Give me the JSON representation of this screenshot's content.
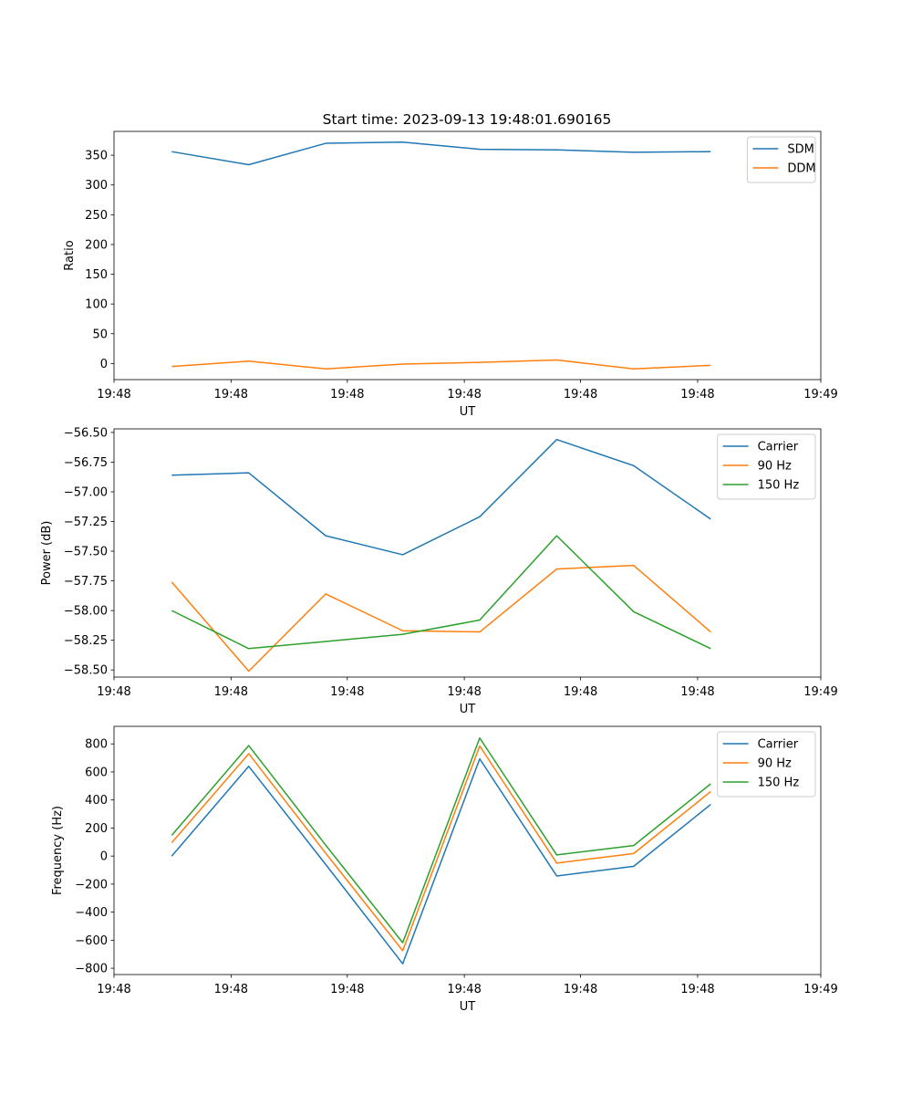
{
  "figure_title": "Start time: 2023-09-13 19:48:01.690165",
  "chart_data": [
    {
      "type": "line",
      "title": "Start time: 2023-09-13 19:48:01.690165",
      "xlabel": "UT",
      "ylabel": "Ratio",
      "x": [
        0,
        1,
        2,
        3,
        4,
        5,
        6,
        7
      ],
      "xlim": [
        -0.75,
        8.43
      ],
      "x_ticks": [
        -0.75,
        0.77,
        2.28,
        3.8,
        5.31,
        6.83,
        8.43
      ],
      "x_tick_labels": [
        "19:48",
        "19:48",
        "19:48",
        "19:48",
        "19:48",
        "19:48",
        "19:49"
      ],
      "ylim": [
        -27,
        390
      ],
      "y_ticks": [
        0,
        50,
        100,
        150,
        200,
        250,
        300,
        350
      ],
      "y_tick_labels": [
        "0",
        "50",
        "100",
        "150",
        "200",
        "250",
        "300",
        "350"
      ],
      "legend_position": "top-right",
      "series": [
        {
          "name": "SDM",
          "color": "#1f77b4",
          "values": [
            356,
            334,
            370,
            372,
            360,
            359,
            355,
            356
          ]
        },
        {
          "name": "DDM",
          "color": "#ff7f0e",
          "values": [
            -5,
            4,
            -9,
            -1,
            2,
            6,
            -9,
            -3
          ]
        }
      ]
    },
    {
      "type": "line",
      "title": "",
      "xlabel": "UT",
      "ylabel": "Power (dB)",
      "x": [
        0,
        1,
        2,
        3,
        4,
        5,
        6,
        7
      ],
      "xlim": [
        -0.75,
        8.43
      ],
      "x_ticks": [
        -0.75,
        0.77,
        2.28,
        3.8,
        5.31,
        6.83,
        8.43
      ],
      "x_tick_labels": [
        "19:48",
        "19:48",
        "19:48",
        "19:48",
        "19:48",
        "19:48",
        "19:49"
      ],
      "ylim": [
        -58.56,
        -56.47
      ],
      "y_ticks": [
        -58.5,
        -58.25,
        -58.0,
        -57.75,
        -57.5,
        -57.25,
        -57.0,
        -56.75,
        -56.5
      ],
      "y_tick_labels": [
        "−58.50",
        "−58.25",
        "−58.00",
        "−57.75",
        "−57.50",
        "−57.25",
        "−57.00",
        "−56.75",
        "−56.50"
      ],
      "legend_position": "top-right",
      "series": [
        {
          "name": "Carrier",
          "color": "#1f77b4",
          "values": [
            -56.86,
            -56.84,
            -57.37,
            -57.53,
            -57.21,
            -56.56,
            -56.78,
            -57.23
          ]
        },
        {
          "name": "90 Hz",
          "color": "#ff7f0e",
          "values": [
            -57.76,
            -58.51,
            -57.86,
            -58.17,
            -58.18,
            -57.65,
            -57.62,
            -58.18
          ]
        },
        {
          "name": "150 Hz",
          "color": "#2ca02c",
          "values": [
            -58.0,
            -58.32,
            -58.26,
            -58.2,
            -58.08,
            -57.37,
            -58.01,
            -58.32
          ]
        }
      ]
    },
    {
      "type": "line",
      "title": "",
      "xlabel": "UT",
      "ylabel": "Frequency (Hz)",
      "x": [
        0,
        1,
        2,
        3,
        4,
        5,
        6,
        7
      ],
      "xlim": [
        -0.75,
        8.43
      ],
      "x_ticks": [
        -0.75,
        0.77,
        2.28,
        3.8,
        5.31,
        6.83,
        8.43
      ],
      "x_tick_labels": [
        "19:48",
        "19:48",
        "19:48",
        "19:48",
        "19:48",
        "19:48",
        "19:49"
      ],
      "ylim": [
        -845,
        925
      ],
      "y_ticks": [
        -800,
        -600,
        -400,
        -200,
        0,
        200,
        400,
        600,
        800
      ],
      "y_tick_labels": [
        "−800",
        "−600",
        "−400",
        "−200",
        "0",
        "200",
        "400",
        "600",
        "800"
      ],
      "legend_position": "top-right",
      "series": [
        {
          "name": "Carrier",
          "color": "#1f77b4",
          "values": [
            0,
            640,
            -60,
            -768,
            693,
            -142,
            -73,
            368
          ]
        },
        {
          "name": "90 Hz",
          "color": "#ff7f0e",
          "values": [
            95,
            730,
            20,
            -675,
            785,
            -50,
            18,
            460
          ]
        },
        {
          "name": "150 Hz",
          "color": "#2ca02c",
          "values": [
            148,
            788,
            78,
            -618,
            842,
            8,
            75,
            515
          ]
        }
      ]
    }
  ]
}
